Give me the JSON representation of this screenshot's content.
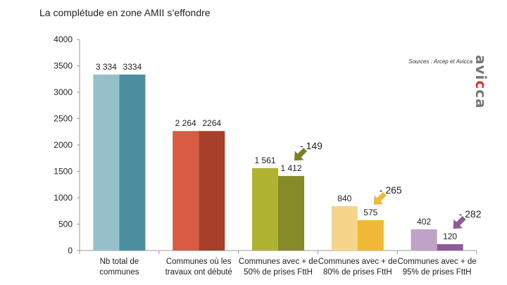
{
  "title": "La complétude en zone AMII s’effondre",
  "source": "Sources : Arcep et Avicca",
  "logo": {
    "text_before": "avi",
    "accent": "c",
    "text_after": "ca"
  },
  "colors": {
    "axis": "#9a9a9a",
    "text": "#222222",
    "logo_grey": "#777777",
    "logo_accent": "#d9382e"
  },
  "chart_data": {
    "type": "bar",
    "title": "La complétude en zone AMII s’effondre",
    "xlabel": "",
    "ylabel": "",
    "ylim": [
      0,
      4000
    ],
    "yticks": [
      0,
      500,
      1000,
      1500,
      2000,
      2500,
      3000,
      3500,
      4000
    ],
    "grid": false,
    "categories": [
      [
        "Nb total de",
        "communes"
      ],
      [
        "Communes où les",
        "travaux ont débuté"
      ],
      [
        "Communes avec + de",
        "50% de prises FttH"
      ],
      [
        "Communes avec + de",
        "80% de prises FttH"
      ],
      [
        "Communes avec + de",
        "95% de prises FttH"
      ]
    ],
    "series": [
      {
        "name": "left",
        "values": [
          3334,
          2264,
          1561,
          840,
          402
        ],
        "labels": [
          "3 334",
          "2 264",
          "1 561",
          "840",
          "402"
        ],
        "colors": [
          "#95bfcb",
          "#d95b43",
          "#b0b332",
          "#f5d589",
          "#c1a2c7"
        ]
      },
      {
        "name": "right",
        "values": [
          3334,
          2264,
          1412,
          575,
          120
        ],
        "labels": [
          "3334",
          "2264",
          "1 412",
          "575",
          "120"
        ],
        "colors": [
          "#4d8e9e",
          "#a83f2b",
          "#868a28",
          "#f0b935",
          "#8c5c98"
        ]
      }
    ],
    "annotations": [
      {
        "category": 2,
        "text": "- 149",
        "arrow_color": "#7b7f26"
      },
      {
        "category": 3,
        "text": "- 265",
        "arrow_color": "#f0b935"
      },
      {
        "category": 4,
        "text": "- 282",
        "arrow_color": "#8c5c98"
      }
    ]
  }
}
